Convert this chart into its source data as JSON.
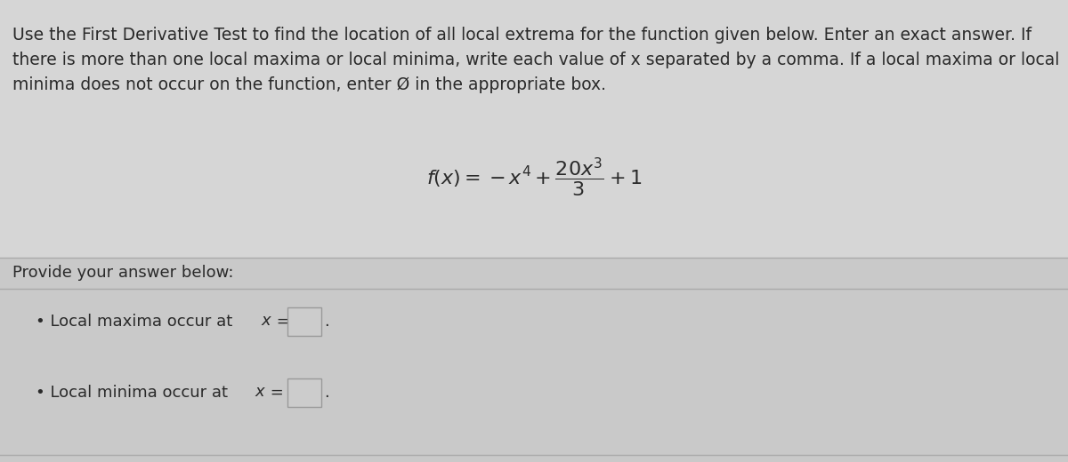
{
  "background_color": "#cdcdcd",
  "top_section_bg": "#d4d4d4",
  "bottom_section_bg": "#c8c8c8",
  "instruction_line1": "Use the First Derivative Test to find the location of all local extrema for the function given below. Enter an exact answer. If",
  "instruction_line2": "there is more than one local maxima or local minima, write each value of x separated by a comma. If a local maxima or local",
  "instruction_line3": "minima does not occur on the function, enter Ø in the appropriate box.",
  "provide_text": "Provide your answer below:",
  "font_size_instruction": 13.5,
  "font_size_body": 13.0,
  "font_size_formula": 16,
  "text_color": "#2a2a2a",
  "divider_color": "#aaaaaa",
  "box_facecolor": "#cccccc",
  "box_edgecolor": "#999999",
  "top_bg": "#d6d6d6",
  "bottom_bg": "#c9c9c9"
}
